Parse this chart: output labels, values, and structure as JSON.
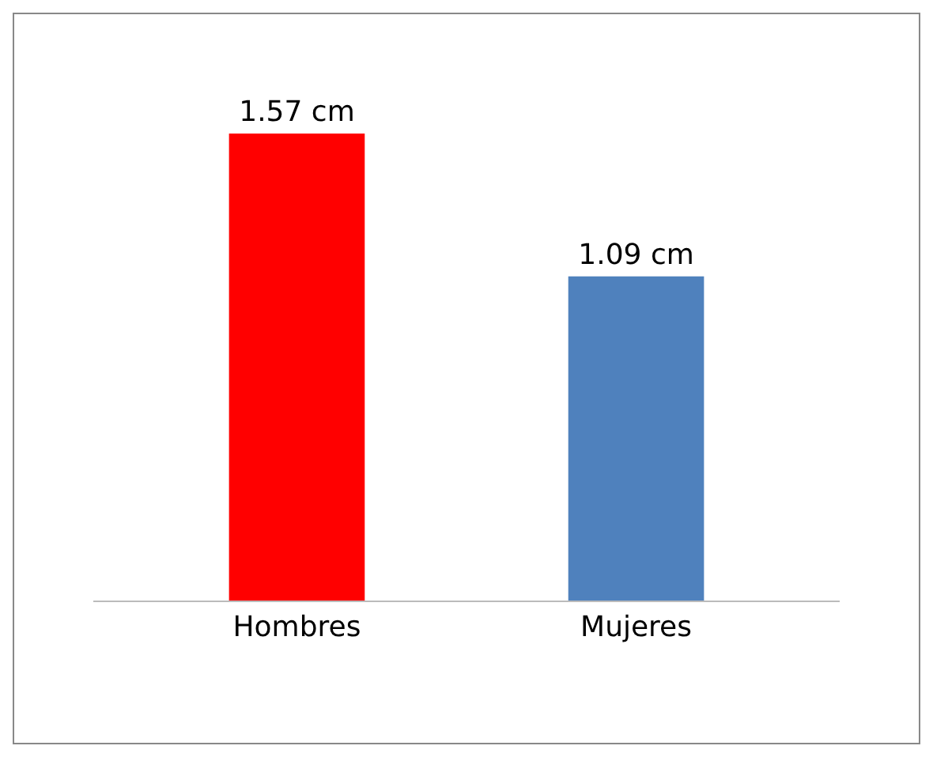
{
  "chart_data": {
    "type": "bar",
    "categories": [
      "Hombres",
      "Mujeres"
    ],
    "values": [
      1.57,
      1.09
    ],
    "colors": [
      "#ff0000",
      "#4f81bd"
    ],
    "value_labels": [
      "1.57 cm",
      "1.09 cm"
    ],
    "grid": false,
    "legend": false
  }
}
